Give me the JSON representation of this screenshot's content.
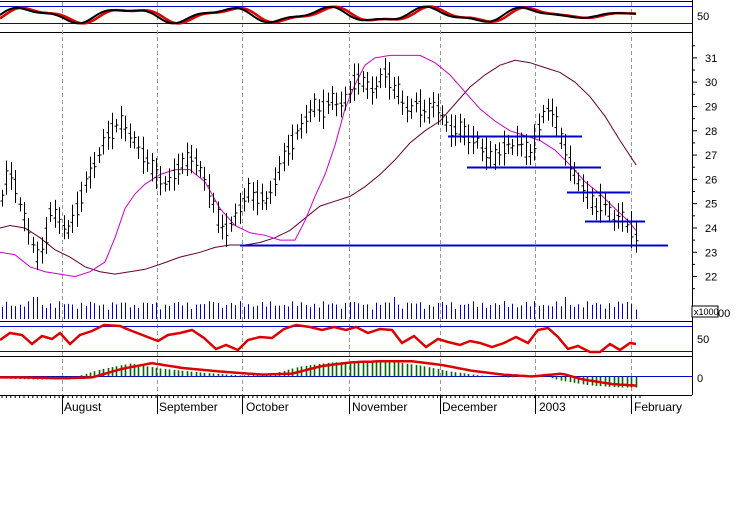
{
  "chart_data": [
    {
      "type": "line",
      "panel": "top-oscillator",
      "y_tick_labels": [
        "50"
      ],
      "colors": {
        "fast": "#000000",
        "slow": "#dd0000",
        "levels": "#0000cc"
      }
    },
    {
      "type": "ohlc",
      "panel": "price",
      "y_ticks": [
        22,
        23,
        24,
        25,
        26,
        27,
        28,
        29,
        30,
        31
      ],
      "ylim": [
        21.2,
        31.9
      ],
      "grid": "vertical dashed month separators",
      "series": [
        {
          "name": "",
          "color": "#000000",
          "kind": "price-bars"
        },
        {
          "name": "",
          "color": "#cc00cc",
          "kind": "moving-average"
        },
        {
          "name": "",
          "color": "#660033",
          "kind": "moving-average"
        }
      ],
      "support_lines": [
        {
          "level": 23.3,
          "color": "#0000cc"
        },
        {
          "level": 24.3,
          "color": "#0000cc"
        },
        {
          "level": 25.5,
          "color": "#0000cc"
        },
        {
          "level": 26.5,
          "color": "#0000cc"
        },
        {
          "level": 27.8,
          "color": "#0000cc"
        }
      ]
    },
    {
      "type": "bar",
      "panel": "volume",
      "unit_label": "x1000",
      "y_tick_labels": [
        "00"
      ],
      "color": "#0000cc"
    },
    {
      "type": "line",
      "panel": "rsi",
      "y_tick_labels": [
        "50"
      ],
      "color": "#dd0000"
    },
    {
      "type": "bar",
      "panel": "macd",
      "y_tick_labels": [
        "0"
      ],
      "colors": {
        "histogram": "#006600",
        "signal": "#dd0000"
      }
    }
  ],
  "x_axis": {
    "labels": [
      "August",
      "September",
      "October",
      "November",
      "December",
      "2003",
      "February"
    ]
  }
}
